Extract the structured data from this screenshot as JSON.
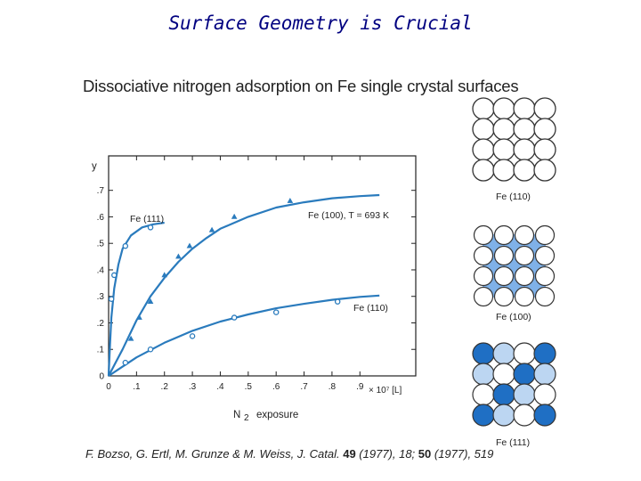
{
  "slide": {
    "title": "Surface Geometry is Crucial"
  },
  "figure": {
    "title": "Dissociative nitrogen adsorption on Fe single crystal surfaces"
  },
  "citation": {
    "authors": "F. Bozso, G. Ertl, M. Grunze & M. Weiss, J. Catal.",
    "vol1": "49",
    "rest1": " (1977), 18; ",
    "vol2": "50",
    "rest2": " (1977), 519"
  },
  "colors": {
    "series": "#2a7bbd",
    "frame": "#222222",
    "atom_light": "#bcd6f2",
    "atom_mid": "#7fb1e8",
    "atom_dark": "#1f6fc4"
  },
  "chart_data": {
    "type": "line",
    "ylabel": "y",
    "xlabel_main": "N",
    "xlabel_sub": "2",
    "xlabel_rest": "exposure",
    "x_unit_label": "× 10⁷ [L]",
    "xlim": [
      0,
      1.1
    ],
    "ylim": [
      0,
      0.83
    ],
    "x_ticks": [
      {
        "v": 0,
        "label": "0"
      },
      {
        "v": 0.1,
        "label": ".1"
      },
      {
        "v": 0.2,
        "label": ".2"
      },
      {
        "v": 0.3,
        "label": ".3"
      },
      {
        "v": 0.4,
        "label": ".4"
      },
      {
        "v": 0.5,
        "label": ".5"
      },
      {
        "v": 0.6,
        "label": ".6"
      },
      {
        "v": 0.7,
        "label": ".7"
      },
      {
        "v": 0.8,
        "label": ".8"
      },
      {
        "v": 0.9,
        "label": ".9"
      }
    ],
    "y_ticks": [
      {
        "v": 0,
        "label": "0"
      },
      {
        "v": 0.1,
        "label": ".1"
      },
      {
        "v": 0.2,
        "label": ".2"
      },
      {
        "v": 0.3,
        "label": ".3"
      },
      {
        "v": 0.4,
        "label": ".4"
      },
      {
        "v": 0.5,
        "label": ".5"
      },
      {
        "v": 0.6,
        "label": ".6"
      },
      {
        "v": 0.7,
        "label": ".7"
      }
    ],
    "grid": false,
    "series": [
      {
        "name": "Fe (111)",
        "marker": "circle",
        "curve": [
          [
            0,
            0
          ],
          [
            0.005,
            0.12
          ],
          [
            0.01,
            0.22
          ],
          [
            0.02,
            0.33
          ],
          [
            0.035,
            0.42
          ],
          [
            0.05,
            0.48
          ],
          [
            0.08,
            0.53
          ],
          [
            0.12,
            0.56
          ],
          [
            0.16,
            0.572
          ],
          [
            0.2,
            0.578
          ]
        ],
        "points": [
          [
            0.01,
            0.29
          ],
          [
            0.02,
            0.38
          ],
          [
            0.06,
            0.49
          ],
          [
            0.15,
            0.56
          ]
        ]
      },
      {
        "name": "Fe (100), T = 693 K",
        "marker": "triangle",
        "curve": [
          [
            0,
            0
          ],
          [
            0.05,
            0.1
          ],
          [
            0.1,
            0.21
          ],
          [
            0.15,
            0.3
          ],
          [
            0.2,
            0.37
          ],
          [
            0.25,
            0.43
          ],
          [
            0.3,
            0.48
          ],
          [
            0.35,
            0.52
          ],
          [
            0.4,
            0.555
          ],
          [
            0.5,
            0.6
          ],
          [
            0.6,
            0.635
          ],
          [
            0.7,
            0.655
          ],
          [
            0.8,
            0.67
          ],
          [
            0.9,
            0.678
          ],
          [
            0.97,
            0.682
          ]
        ],
        "points": [
          [
            0.08,
            0.14
          ],
          [
            0.11,
            0.22
          ],
          [
            0.15,
            0.28
          ],
          [
            0.2,
            0.38
          ],
          [
            0.25,
            0.45
          ],
          [
            0.29,
            0.49
          ],
          [
            0.37,
            0.55
          ],
          [
            0.45,
            0.6
          ],
          [
            0.65,
            0.66
          ]
        ]
      },
      {
        "name": "Fe (110)",
        "marker": "circle",
        "curve": [
          [
            0,
            0
          ],
          [
            0.05,
            0.035
          ],
          [
            0.1,
            0.07
          ],
          [
            0.2,
            0.125
          ],
          [
            0.3,
            0.17
          ],
          [
            0.4,
            0.205
          ],
          [
            0.5,
            0.232
          ],
          [
            0.6,
            0.255
          ],
          [
            0.7,
            0.272
          ],
          [
            0.8,
            0.287
          ],
          [
            0.9,
            0.298
          ],
          [
            0.97,
            0.303
          ]
        ],
        "points": [
          [
            0.06,
            0.05
          ],
          [
            0.15,
            0.1
          ],
          [
            0.3,
            0.15
          ],
          [
            0.45,
            0.22
          ],
          [
            0.6,
            0.24
          ],
          [
            0.82,
            0.28
          ]
        ]
      }
    ]
  },
  "surfaces": [
    {
      "label": "Fe (110)"
    },
    {
      "label": "Fe (100)"
    },
    {
      "label": "Fe (111)"
    }
  ]
}
